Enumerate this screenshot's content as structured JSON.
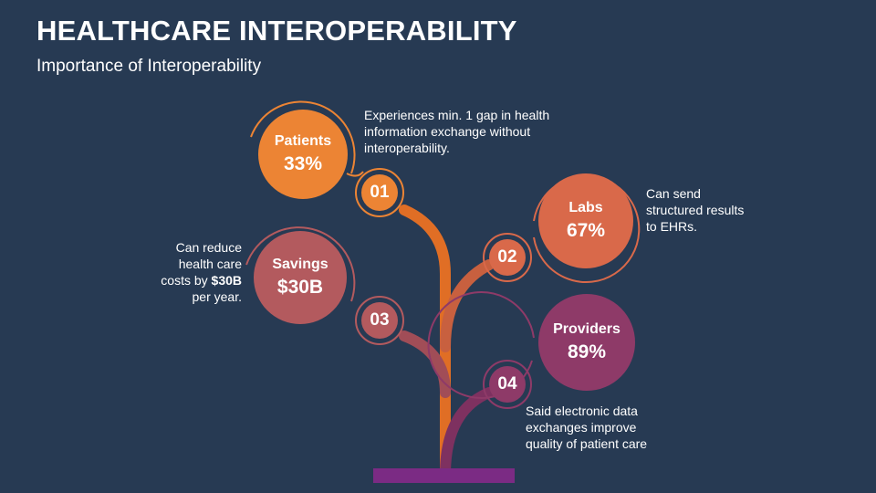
{
  "title": "HEALTHCARE INTEROPERABILITY",
  "subtitle": "Importance of Interoperability",
  "colors": {
    "background": "#273a53",
    "patients": "#ec8434",
    "labs": "#d9694a",
    "savings": "#b35a5e",
    "providers": "#8e3a68",
    "base": "#7b2b84"
  },
  "items": [
    {
      "number": "01",
      "label": "Patients",
      "value": "33%",
      "description": "Experiences min. 1 gap in health information exchange without interoperability."
    },
    {
      "number": "02",
      "label": "Labs",
      "value": "67%",
      "description": "Can send structured results to EHRs."
    },
    {
      "number": "03",
      "label": "Savings",
      "value": "$30B",
      "description_pre": "Can reduce health care costs by ",
      "description_bold": "$30B",
      "description_post": " per year."
    },
    {
      "number": "04",
      "label": "Providers",
      "value": "89%",
      "description": "Said electronic data exchanges improve quality of patient care"
    }
  ]
}
